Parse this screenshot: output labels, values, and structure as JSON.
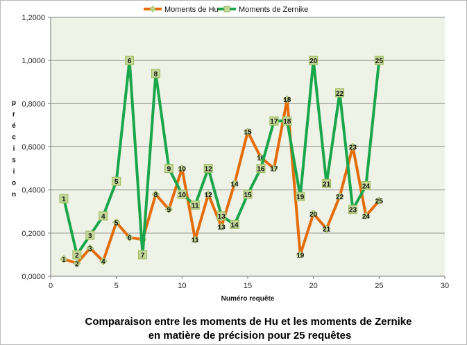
{
  "chart_data": {
    "type": "line",
    "xlabel": "Numéro requête",
    "ylabel": "précision",
    "xlim": [
      0,
      30
    ],
    "ylim": [
      0,
      1.2
    ],
    "xticks": [
      "0",
      "5",
      "10",
      "15",
      "20",
      "25",
      "30"
    ],
    "yticks": [
      "0,0000",
      "0,2000",
      "0,4000",
      "0,6000",
      "0,8000",
      "1,0000",
      "1,2000"
    ],
    "grid": "horizontal",
    "legend": "top-center",
    "caption_lines": [
      "Comparaison entre les moments de Hu et les moments de  Zernike",
      "en matière de précision pour 25 requêtes"
    ],
    "series": [
      {
        "name": "Moments de Hu",
        "color": "#e46c0a",
        "marker": "diamond",
        "x": [
          1,
          2,
          3,
          4,
          5,
          6,
          7,
          8,
          9,
          10,
          11,
          12,
          13,
          14,
          15,
          16,
          17,
          18,
          19,
          20,
          21,
          22,
          23,
          24,
          25
        ],
        "y": [
          0.08,
          0.06,
          0.13,
          0.07,
          0.25,
          0.18,
          0.17,
          0.38,
          0.31,
          0.5,
          0.17,
          0.38,
          0.23,
          0.43,
          0.67,
          0.55,
          0.5,
          0.82,
          0.1,
          0.29,
          0.22,
          0.37,
          0.6,
          0.28,
          0.35
        ],
        "labels": [
          "1",
          "2",
          "3",
          "4",
          "5",
          "6",
          "7",
          "8",
          "9",
          "10",
          "11",
          "12",
          "13",
          "14",
          "15",
          "16",
          "17",
          "18",
          "19",
          "20",
          "21",
          "22",
          "23",
          "24",
          "25"
        ]
      },
      {
        "name": "Moments de Zernike",
        "color": "#1aa64a",
        "marker": "square",
        "x": [
          1,
          2,
          3,
          4,
          5,
          6,
          7,
          8,
          9,
          10,
          11,
          12,
          13,
          14,
          15,
          16,
          17,
          18,
          19,
          20,
          21,
          22,
          23,
          24,
          25
        ],
        "y": [
          0.36,
          0.1,
          0.19,
          0.28,
          0.44,
          1.0,
          0.1,
          0.94,
          0.5,
          0.38,
          0.33,
          0.5,
          0.28,
          0.24,
          0.38,
          0.5,
          0.72,
          0.72,
          0.37,
          1.0,
          0.43,
          0.85,
          0.31,
          0.42,
          1.0
        ],
        "labels": [
          "1",
          "2",
          "3",
          "4",
          "5",
          "6",
          "7",
          "8",
          "9",
          "10",
          "11",
          "12",
          "13",
          "14",
          "15",
          "16",
          "17",
          "18",
          "19",
          "20",
          "21",
          "22",
          "23",
          "24",
          "25"
        ]
      }
    ]
  }
}
